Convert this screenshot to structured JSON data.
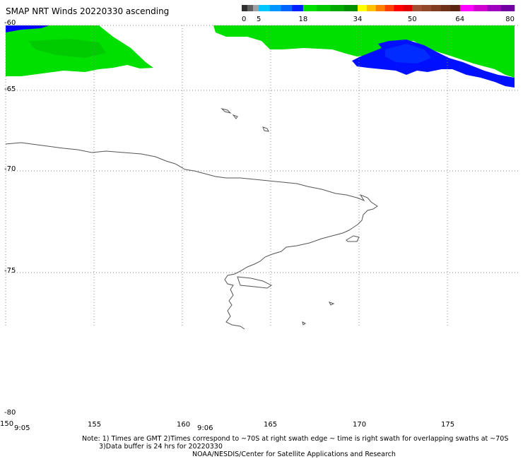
{
  "title": "SMAP NRT Winds 20220330 ascending",
  "colorbar": {
    "labels": [
      "0",
      "5",
      "18",
      "34",
      "50",
      "64",
      "80"
    ],
    "bins": [
      {
        "from": 0,
        "to": 5,
        "colors": [
          "#303030",
          "#606060",
          "#a0a0a0"
        ]
      },
      {
        "from": 5,
        "to": 18,
        "colors": [
          "#00c8ff",
          "#0096ff",
          "#0064ff",
          "#0020ff"
        ]
      },
      {
        "from": 18,
        "to": 34,
        "colors": [
          "#00e000",
          "#00c800",
          "#00a800",
          "#009000"
        ]
      },
      {
        "from": 34,
        "to": 50,
        "colors": [
          "#ffff00",
          "#ffc000",
          "#ff8000",
          "#ff4000",
          "#ff0000",
          "#e00000"
        ]
      },
      {
        "from": 50,
        "to": 64,
        "colors": [
          "#a05030",
          "#904828",
          "#803c20",
          "#6e3018",
          "#5a2410"
        ]
      },
      {
        "from": 64,
        "to": 80,
        "colors": [
          "#ff00ff",
          "#d000d0",
          "#a000c0",
          "#7000a0"
        ]
      }
    ]
  },
  "lat_labels": [
    "-60",
    "-65",
    "-70",
    "-75",
    "-80"
  ],
  "lon_labels": [
    "150",
    "155",
    "160",
    "165",
    "170",
    "175"
  ],
  "swath_times": [
    "9:05",
    "9:06"
  ],
  "notes": {
    "line1": "Note: 1) Times are GMT 2)Times correspond to ~70S at right swath edge ~ time is right swath for overlapping swaths at ~70S",
    "line2": "3)Data buffer is 24 hrs for 20220330",
    "line3": "NOAA/NESDIS/Center for Satellite Applications and Research"
  },
  "map_extent": {
    "lon": [
      150,
      180
    ],
    "lat": [
      -80,
      -60
    ]
  },
  "colors": {
    "green": "#00e000",
    "blue": "#0000ff",
    "coast": "#555555",
    "grid": "#888888"
  }
}
